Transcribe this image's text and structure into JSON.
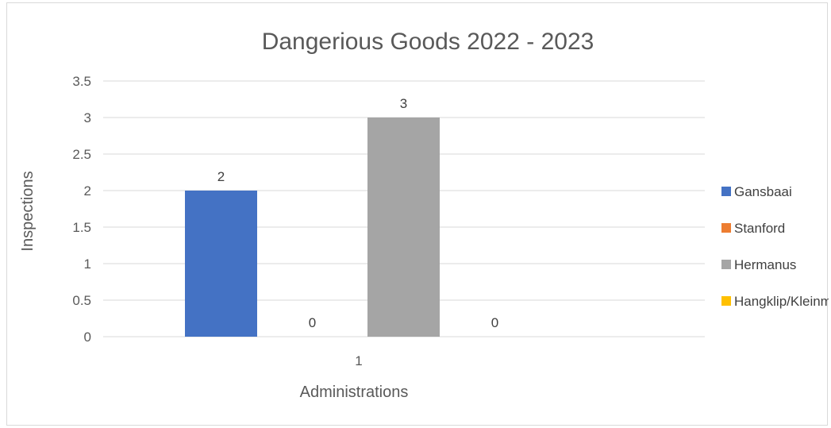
{
  "chart_data": {
    "type": "bar",
    "title": "Dangerious Goods 2022 - 2023",
    "xlabel": "Administrations",
    "ylabel": "Inspections",
    "categories": [
      "1"
    ],
    "ylim": [
      0,
      3.5
    ],
    "yticks": [
      "0",
      "0.5",
      "1",
      "1.5",
      "2",
      "2.5",
      "3",
      "3.5"
    ],
    "grid": true,
    "legend_position": "right",
    "series": [
      {
        "name": "Gansbaai",
        "values": [
          2
        ],
        "color": "#4472C4"
      },
      {
        "name": "Stanford",
        "values": [
          0
        ],
        "color": "#ED7D31"
      },
      {
        "name": "Hermanus",
        "values": [
          3
        ],
        "color": "#A5A5A5"
      },
      {
        "name": "Hangklip/Kleinmond",
        "values": [
          0
        ],
        "color": "#FFC000"
      }
    ],
    "data_labels": [
      "2",
      "0",
      "3",
      "0"
    ]
  }
}
